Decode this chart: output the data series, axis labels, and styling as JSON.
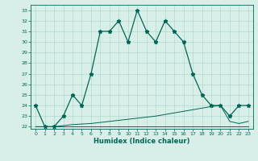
{
  "xlabel": "Humidex (Indice chaleur)",
  "bg_color": "#d8eee8",
  "grid_color": "#a8d4c8",
  "line_color": "#006655",
  "x": [
    0,
    1,
    2,
    3,
    4,
    5,
    6,
    7,
    8,
    9,
    10,
    11,
    12,
    13,
    14,
    15,
    16,
    17,
    18,
    19,
    20,
    21,
    22,
    23
  ],
  "y_main": [
    24,
    22,
    22,
    23,
    25,
    24,
    27,
    31,
    31,
    32,
    30,
    33,
    31,
    30,
    32,
    31,
    30,
    27,
    25,
    24,
    24,
    23,
    24,
    24
  ],
  "y_flat": [
    22,
    22,
    22,
    22,
    22,
    22,
    22,
    22,
    22,
    22,
    22,
    22,
    22,
    22,
    22,
    22,
    22,
    22,
    22,
    22,
    22,
    22,
    22,
    22
  ],
  "y_rising": [
    22,
    22,
    22,
    22.1,
    22.2,
    22.25,
    22.3,
    22.4,
    22.5,
    22.6,
    22.7,
    22.8,
    22.9,
    23.0,
    23.15,
    23.3,
    23.45,
    23.6,
    23.75,
    23.9,
    24.0,
    22.5,
    22.3,
    22.5
  ],
  "ylim": [
    21.8,
    33.5
  ],
  "xlim": [
    -0.5,
    23.5
  ],
  "yticks": [
    22,
    23,
    24,
    25,
    26,
    27,
    28,
    29,
    30,
    31,
    32,
    33
  ],
  "xticks": [
    0,
    1,
    2,
    3,
    4,
    5,
    6,
    7,
    8,
    9,
    10,
    11,
    12,
    13,
    14,
    15,
    16,
    17,
    18,
    19,
    20,
    21,
    22,
    23
  ],
  "xlabel_fontsize": 6,
  "tick_fontsize": 4.5,
  "linewidth_main": 0.9,
  "linewidth_secondary": 0.7,
  "marker_size": 3.5
}
